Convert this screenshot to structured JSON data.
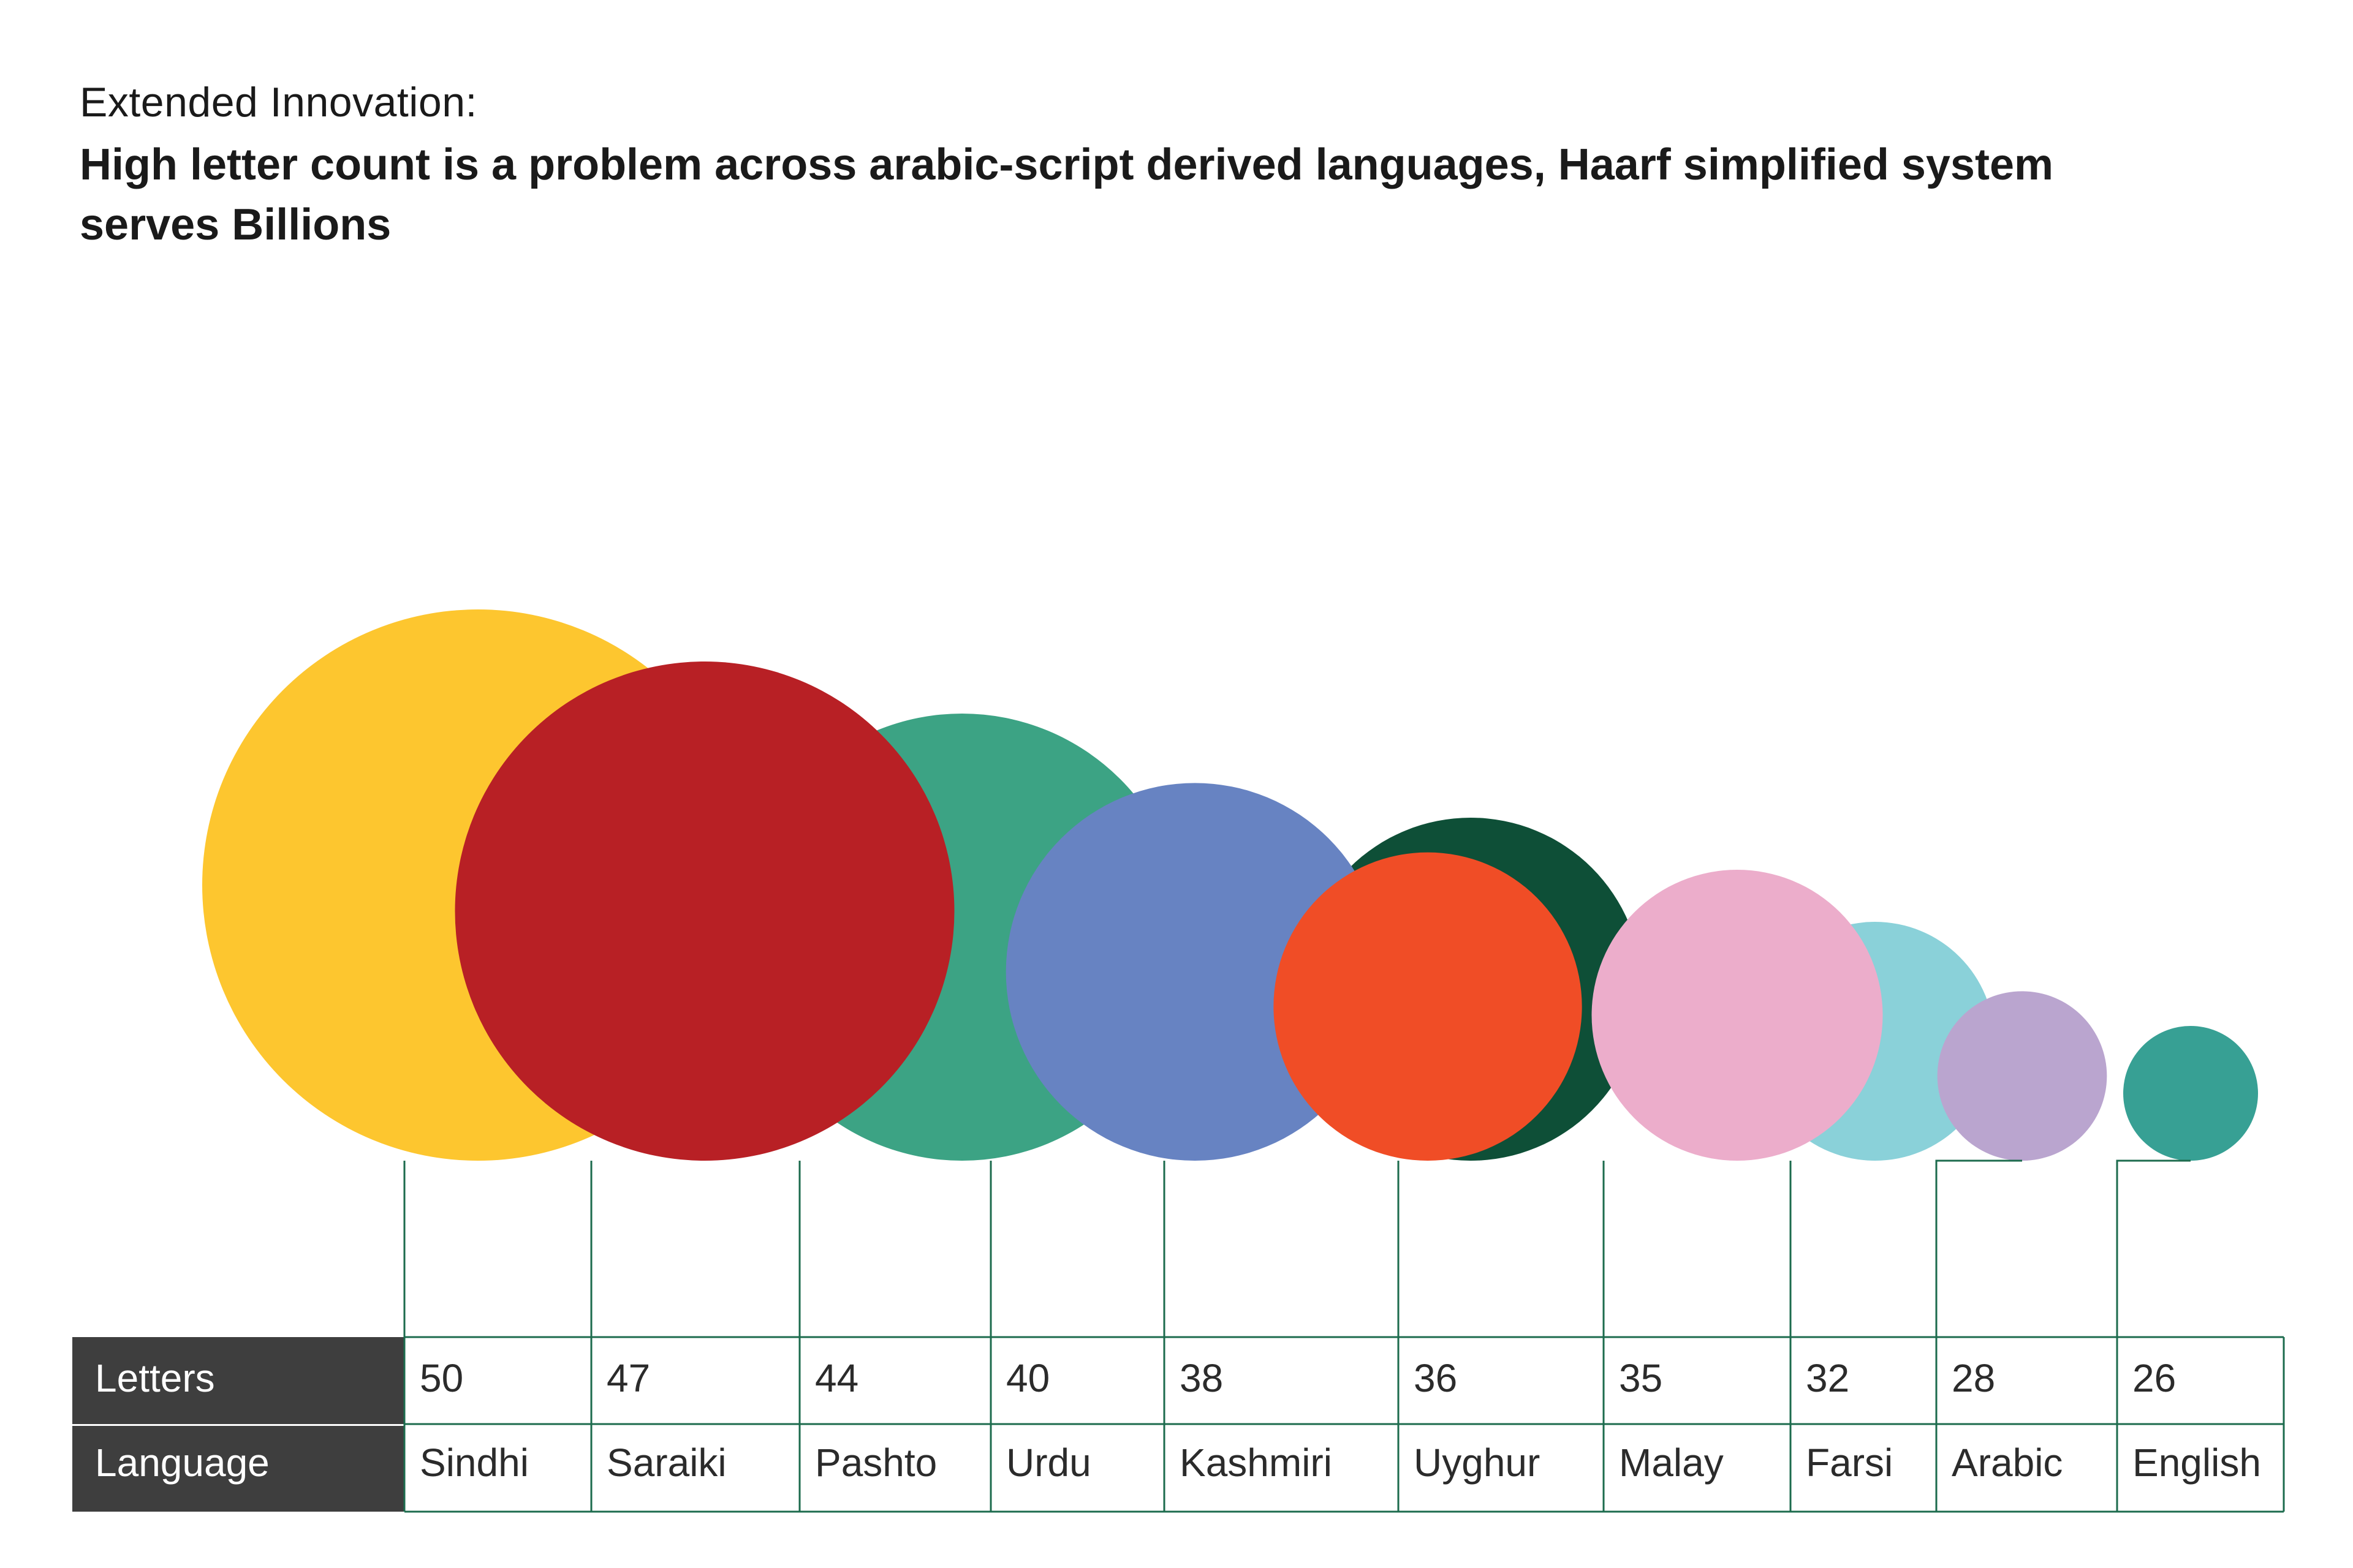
{
  "header": {
    "kicker": "Extended Innovation:",
    "headline": "High letter count is a problem across arabic-script derived languages, Haarf simplified system serves Billions"
  },
  "chart_data": {
    "type": "bubble",
    "row_labels": {
      "letters": "Letters",
      "language": "Language"
    },
    "categories": [
      "Sindhi",
      "Saraiki",
      "Pashto",
      "Urdu",
      "Kashmiri",
      "Uyghur",
      "Malay",
      "Farsi",
      "Arabic",
      "English"
    ],
    "values": [
      50,
      47,
      44,
      40,
      38,
      36,
      35,
      32,
      28,
      26
    ],
    "colors": [
      "#fdc62f",
      "#b82025",
      "#3ca384",
      "#6783c2",
      "#0e4f37",
      "#f04d26",
      "#ecadcb",
      "#8ad1d9",
      "#baa5cf",
      "#37a094"
    ],
    "header_color": "#3e3e3e",
    "line_color": "#1c6b4d"
  }
}
